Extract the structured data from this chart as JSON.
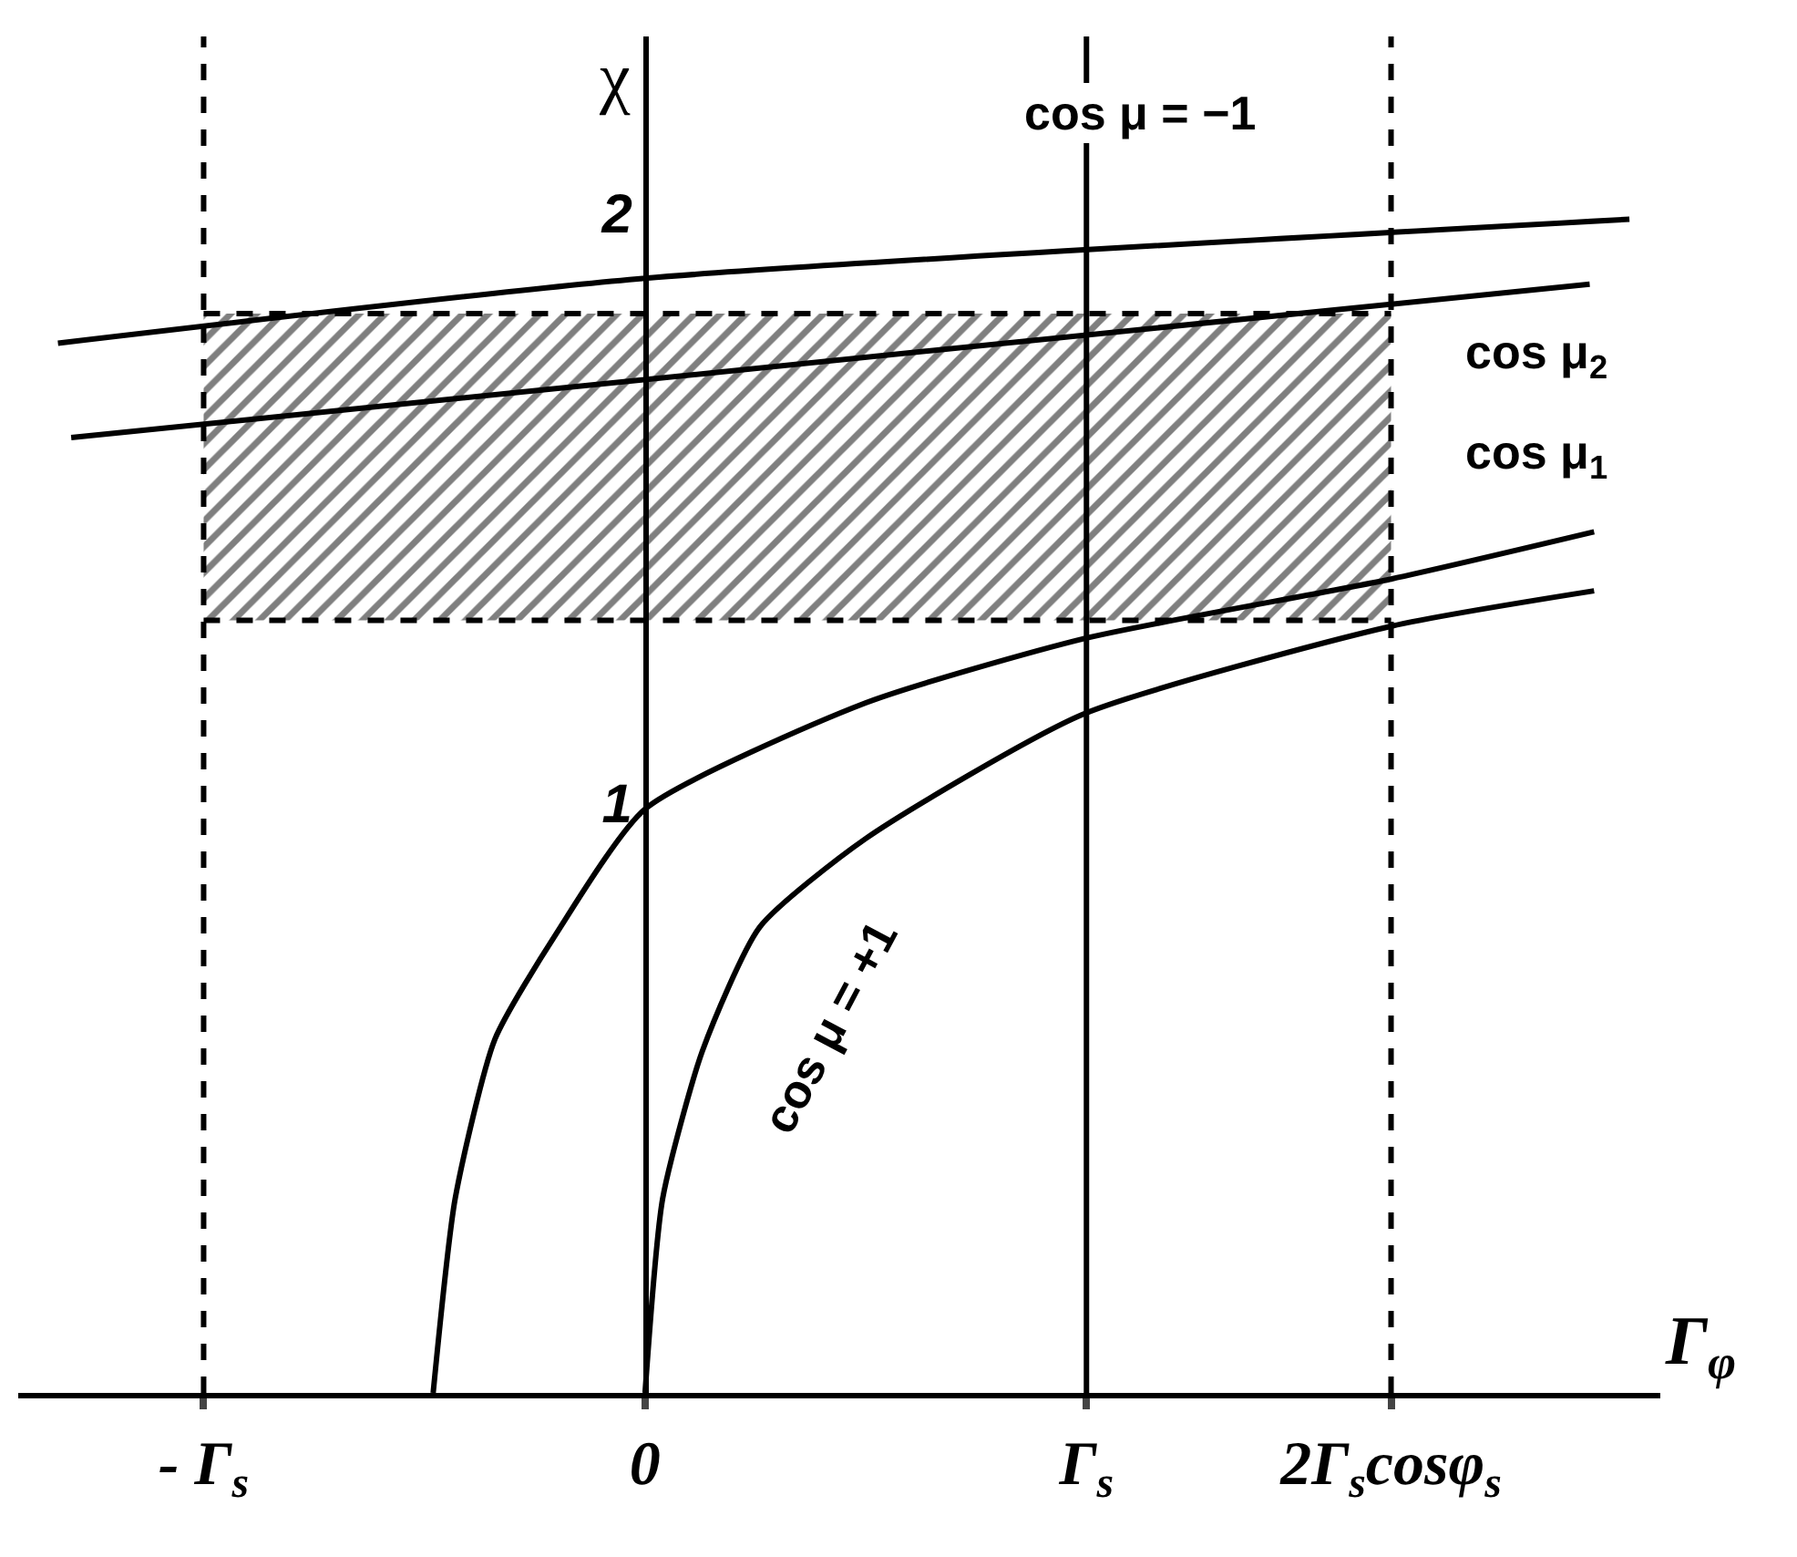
{
  "chart_data": {
    "type": "line",
    "xlabel": "Γ$_{φ}$",
    "ylabel": "χ",
    "xlim": [
      -1.42,
      2.3
    ],
    "ylim": [
      0,
      2.3
    ],
    "xticks": [
      {
        "value": -1,
        "label": "- Γ$_{s}$"
      },
      0,
      {
        "value": 1,
        "label": "Γ$_{s}$"
      },
      {
        "value": 1.69,
        "label": "2Γ$_{s}$cosφ$_{s}$"
      }
    ],
    "yticks": [
      1,
      2
    ],
    "marker": "none",
    "series": [
      {
        "color": "#000000",
        "line_style": "dashed",
        "x": [
          -1,
          1.69
        ],
        "values": [
          1.31,
          1.31
        ]
      },
      {
        "type": "area",
        "color": "#000000",
        "line_style": "dashed",
        "x": [
          -1,
          1.69
        ],
        "values": [
          1.83,
          1.83
        ]
      },
      {
        "color": "#000000",
        "x": [
          -1.33,
          0,
          2.23
        ],
        "values": [
          1.78,
          1.89,
          1.99
        ]
      },
      {
        "color": "#000000",
        "x": [
          -1.3,
          2.14
        ],
        "values": [
          1.62,
          1.88
        ]
      },
      {
        "color": "#000000",
        "x": [
          -0.48,
          -0.43,
          -0.34,
          -0.2,
          0,
          0.5,
          1,
          1.69,
          2.15
        ],
        "values": [
          0,
          0.33,
          0.6,
          0.78,
          0.99,
          1.17,
          1.28,
          1.38,
          1.46
        ]
      },
      {
        "color": "#000000",
        "x": [
          0,
          0.04,
          0.13,
          0.26,
          0.5,
          0.99,
          1.69,
          2.15
        ],
        "values": [
          0,
          0.33,
          0.58,
          0.79,
          0.94,
          1.15,
          1.3,
          1.36
        ]
      }
    ],
    "ref_lines": [
      {
        "axis": "x",
        "value": -1,
        "color": "#000000",
        "line_style": "dashed"
      },
      {
        "axis": "x",
        "value": 1,
        "color": "#000000",
        "line_style": "solid"
      },
      {
        "axis": "x",
        "value": 1.69,
        "color": "#000000",
        "line_style": "dashed"
      }
    ],
    "annotations": [
      "cos μ = −1",
      "cos μ$_{2}$",
      "cos μ$_{1}$",
      "cos μ = +1"
    ]
  }
}
